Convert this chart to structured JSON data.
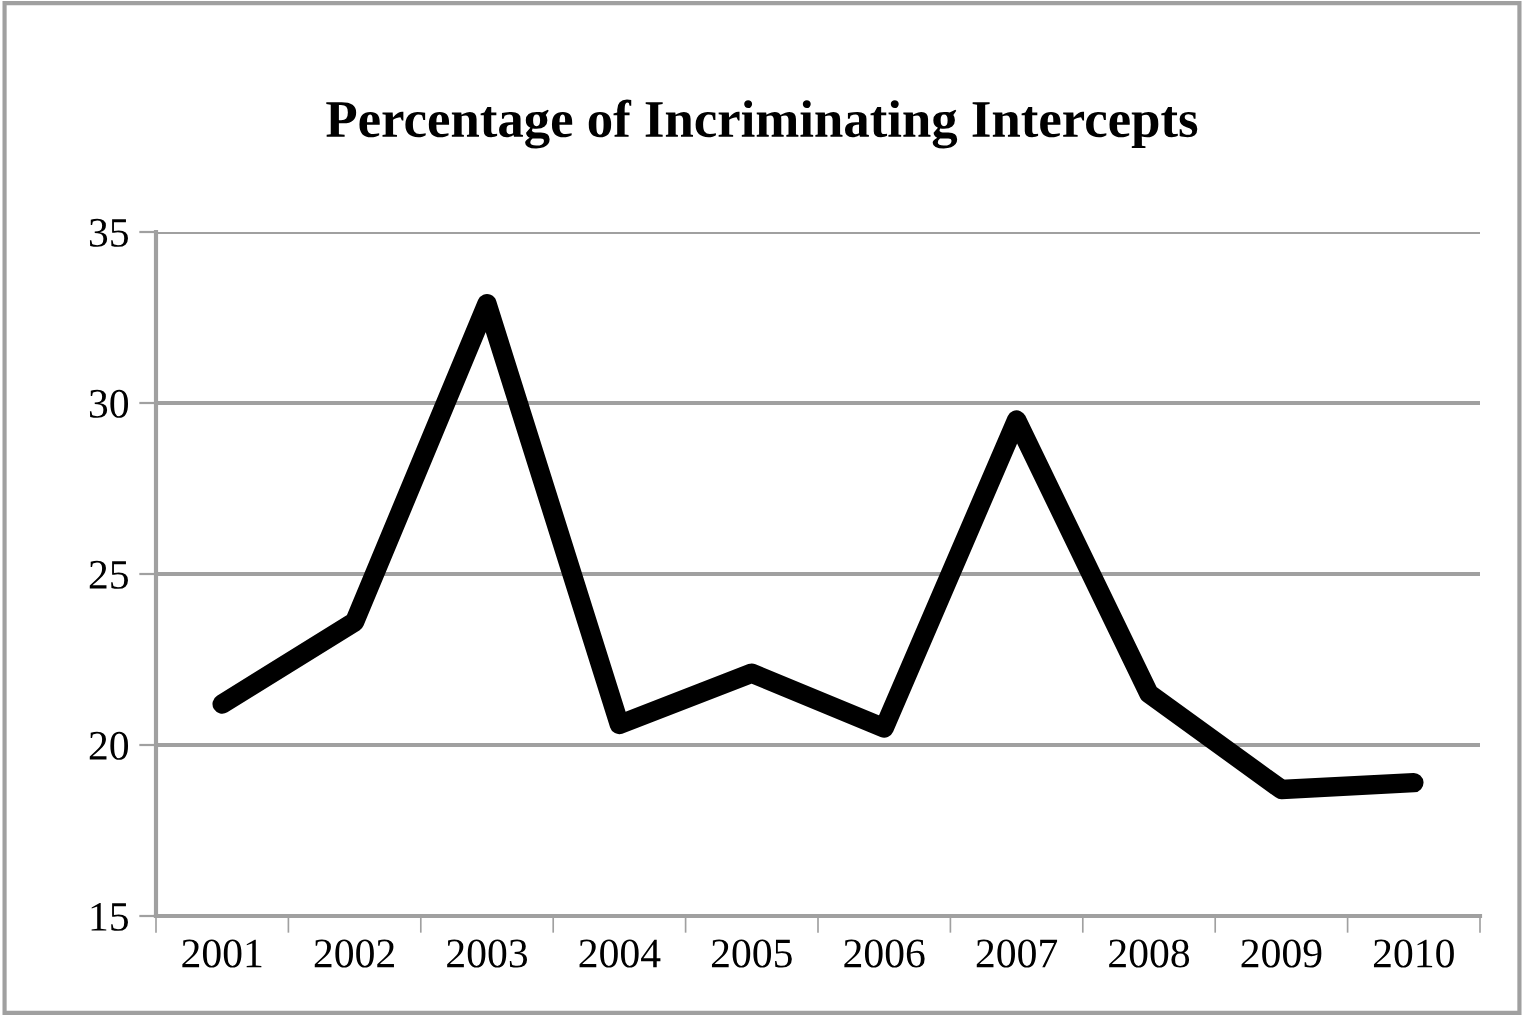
{
  "chart_data": {
    "type": "line",
    "title": "Percentage of Incriminating Intercepts",
    "categories": [
      "2001",
      "2002",
      "2003",
      "2004",
      "2005",
      "2006",
      "2007",
      "2008",
      "2009",
      "2010"
    ],
    "series": [
      {
        "color": "#000000",
        "values": [
          21.2,
          23.6,
          32.9,
          20.6,
          22.1,
          20.5,
          29.5,
          21.5,
          18.7,
          18.9
        ]
      }
    ],
    "ylim": [
      15,
      35
    ],
    "yticks": [
      15,
      20,
      25,
      30,
      35
    ],
    "grid": "y",
    "legend": false,
    "marker": "none",
    "line_style": "solid"
  }
}
